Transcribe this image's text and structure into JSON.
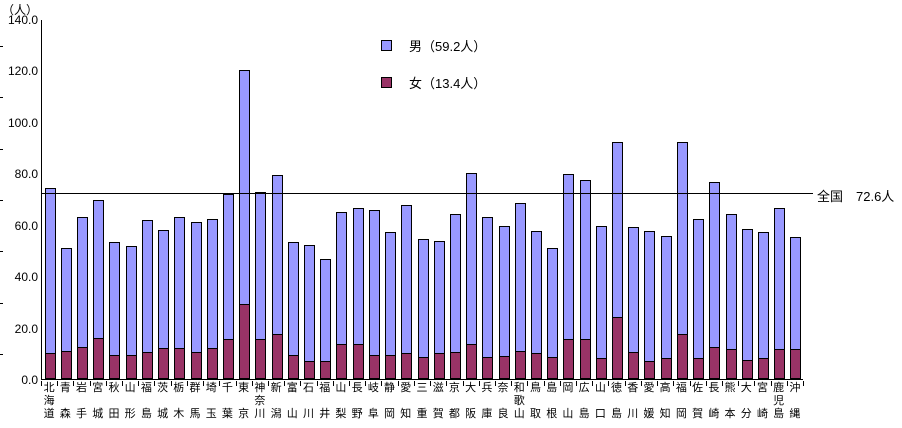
{
  "chart_data": {
    "type": "bar",
    "stacked": true,
    "unit_label": "（人）",
    "title": "",
    "categories": [
      "北海道",
      "青森",
      "岩手",
      "宮城",
      "秋田",
      "山形",
      "福島",
      "茨城",
      "栃木",
      "群馬",
      "埼玉",
      "千葉",
      "東京",
      "神奈川",
      "新潟",
      "富山",
      "石川",
      "福井",
      "山梨",
      "長野",
      "岐阜",
      "静岡",
      "愛知",
      "三重",
      "滋賀",
      "京都",
      "大阪",
      "兵庫",
      "奈良",
      "和歌山",
      "鳥取",
      "島根",
      "岡山",
      "広島",
      "山口",
      "徳島",
      "香川",
      "愛媛",
      "高知",
      "福岡",
      "佐賀",
      "長崎",
      "熊本",
      "大分",
      "宮崎",
      "鹿児島",
      "沖縄"
    ],
    "series": [
      {
        "name": "女",
        "color": "#993366",
        "values": [
          10.0,
          11.0,
          12.5,
          16.0,
          9.5,
          9.5,
          10.5,
          12.0,
          12.0,
          10.5,
          12.0,
          15.5,
          29.0,
          15.5,
          17.5,
          9.5,
          7.0,
          7.0,
          13.5,
          13.5,
          9.5,
          9.5,
          10.0,
          8.5,
          10.0,
          10.5,
          13.5,
          8.5,
          9.0,
          11.0,
          10.0,
          8.5,
          15.5,
          15.5,
          8.0,
          24.0,
          10.5,
          7.0,
          8.0,
          17.5,
          8.0,
          12.5,
          11.5,
          7.5,
          8.0,
          11.5,
          11.5
        ]
      },
      {
        "name": "男",
        "color": "#9999ff",
        "values": [
          64.0,
          40.0,
          50.5,
          53.5,
          44.0,
          42.5,
          51.5,
          46.0,
          51.0,
          50.5,
          50.0,
          56.5,
          91.0,
          57.0,
          62.0,
          44.0,
          45.0,
          39.5,
          51.5,
          53.0,
          56.5,
          48.0,
          57.5,
          46.0,
          43.5,
          53.5,
          66.5,
          54.5,
          50.5,
          57.5,
          47.5,
          42.5,
          64.0,
          62.0,
          51.5,
          68.0,
          48.5,
          50.5,
          47.5,
          74.5,
          54.0,
          64.0,
          52.5,
          51.0,
          49.0,
          55.0,
          43.5
        ]
      }
    ],
    "legend": [
      {
        "label": "男（59.2人）",
        "color": "#9999ff"
      },
      {
        "label": "女（13.4人）",
        "color": "#993366"
      }
    ],
    "national": {
      "male": 59.2,
      "female": 13.4,
      "total": 72.6
    },
    "reference_line": {
      "value": 72.6,
      "label": "全国　72.6人"
    },
    "y_axis": {
      "min": 0,
      "max": 140,
      "major_step": 20,
      "minor_step": 10,
      "tick_labels": [
        "0.0",
        "20.0",
        "40.0",
        "60.0",
        "80.0",
        "100.0",
        "120.0",
        "140.0"
      ]
    },
    "legend_position": "top-center",
    "grid": false
  }
}
